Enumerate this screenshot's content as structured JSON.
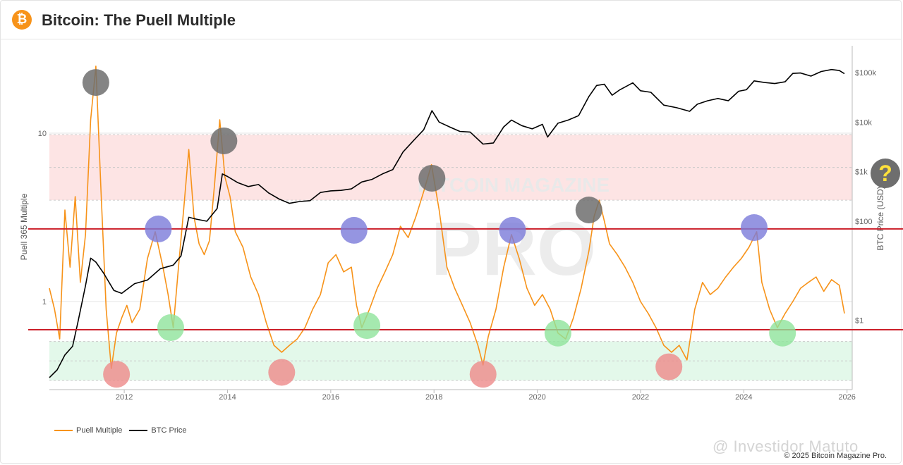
{
  "header": {
    "title": "Bitcoin: The Puell Multiple",
    "icon": "bitcoin-icon"
  },
  "colors": {
    "puell": "#f7931a",
    "btc": "#000000",
    "top_band": "#fde4e4",
    "bottom_band": "#e3f8ea",
    "red_line": "#cc1f2a",
    "circle_gray": "#6e6e6e",
    "circle_blue": "#7b7bd9",
    "circle_green": "#8fe39b",
    "circle_red": "#ee8a8a"
  },
  "legend": {
    "puell_label": "Puell Multiple",
    "btc_label": "BTC Price"
  },
  "footer": {
    "copyright": "© 2025 Bitcoin Magazine Pro.",
    "credit": "@ Investidor Matuto"
  },
  "overlay": {
    "question_mark": "?"
  },
  "chart_data": {
    "type": "line",
    "watermark": "BITCOIN MAGAZINE PRO",
    "x_axis": {
      "ticks": [
        "2012",
        "2014",
        "2016",
        "2018",
        "2020",
        "2022",
        "2024",
        "2026"
      ],
      "range": [
        2010.55,
        2026.1
      ]
    },
    "y_left": {
      "label": "Puell 365 Multiple",
      "scale": "log",
      "ticks": [
        {
          "value": 1,
          "label": "1"
        },
        {
          "value": 10,
          "label": "10"
        }
      ],
      "range": [
        0.3,
        30
      ]
    },
    "y_right": {
      "label": "BTC Price (USD)",
      "scale": "log",
      "ticks": [
        {
          "value": 1,
          "label": "$1"
        },
        {
          "value": 100,
          "label": "$100"
        },
        {
          "value": 1000,
          "label": "$1k"
        },
        {
          "value": 10000,
          "label": "$10k"
        },
        {
          "value": 100000,
          "label": "$100k"
        }
      ],
      "range": [
        0.04,
        250000
      ]
    },
    "bands": [
      {
        "name": "top",
        "from": 4.0,
        "to": 9.8
      },
      {
        "name": "bottom",
        "from": 0.34,
        "to": 0.58
      }
    ],
    "horizontal_lines": [
      2.7,
      0.68
    ],
    "series": [
      {
        "name": "Puell Multiple",
        "axis": "left",
        "x": [
          2010.55,
          2010.65,
          2010.75,
          2010.85,
          2010.95,
          2011.05,
          2011.15,
          2011.25,
          2011.35,
          2011.45,
          2011.55,
          2011.65,
          2011.75,
          2011.85,
          2011.95,
          2012.05,
          2012.15,
          2012.3,
          2012.45,
          2012.6,
          2012.75,
          2012.85,
          2012.95,
          2013.05,
          2013.15,
          2013.25,
          2013.35,
          2013.45,
          2013.55,
          2013.65,
          2013.75,
          2013.85,
          2013.95,
          2014.05,
          2014.15,
          2014.3,
          2014.45,
          2014.6,
          2014.75,
          2014.9,
          2015.05,
          2015.2,
          2015.35,
          2015.5,
          2015.65,
          2015.8,
          2015.95,
          2016.1,
          2016.25,
          2016.4,
          2016.5,
          2016.6,
          2016.75,
          2016.9,
          2017.05,
          2017.2,
          2017.35,
          2017.5,
          2017.65,
          2017.8,
          2017.95,
          2018.1,
          2018.25,
          2018.4,
          2018.55,
          2018.7,
          2018.85,
          2018.95,
          2019.05,
          2019.2,
          2019.35,
          2019.5,
          2019.65,
          2019.8,
          2019.95,
          2020.1,
          2020.25,
          2020.4,
          2020.55,
          2020.7,
          2020.85,
          2021.0,
          2021.1,
          2021.2,
          2021.3,
          2021.4,
          2021.55,
          2021.7,
          2021.85,
          2022.0,
          2022.15,
          2022.3,
          2022.45,
          2022.6,
          2022.75,
          2022.9,
          2023.05,
          2023.2,
          2023.35,
          2023.5,
          2023.65,
          2023.8,
          2023.95,
          2024.1,
          2024.25,
          2024.35,
          2024.5,
          2024.65,
          2024.8,
          2024.95,
          2025.1,
          2025.25,
          2025.4,
          2025.55,
          2025.7,
          2025.85,
          2025.95
        ],
        "y": [
          1.2,
          0.9,
          0.6,
          3.5,
          1.6,
          4.2,
          1.3,
          2.5,
          12,
          25,
          4.5,
          0.9,
          0.4,
          0.65,
          0.8,
          0.95,
          0.75,
          0.9,
          1.8,
          2.6,
          1.6,
          1.1,
          0.7,
          1.6,
          3.5,
          8,
          3.2,
          2.2,
          1.9,
          2.3,
          5.0,
          12.0,
          5.5,
          4.2,
          2.6,
          2.1,
          1.4,
          1.1,
          0.75,
          0.55,
          0.5,
          0.55,
          0.6,
          0.7,
          0.9,
          1.1,
          1.7,
          1.9,
          1.5,
          1.6,
          0.95,
          0.7,
          0.9,
          1.2,
          1.5,
          1.9,
          2.8,
          2.4,
          3.2,
          4.5,
          6.5,
          3.5,
          1.6,
          1.2,
          0.95,
          0.75,
          0.55,
          0.42,
          0.62,
          0.9,
          1.6,
          2.5,
          1.8,
          1.2,
          0.95,
          1.1,
          0.9,
          0.65,
          0.6,
          0.8,
          1.2,
          2.0,
          3.2,
          4.0,
          3.0,
          2.2,
          1.9,
          1.6,
          1.3,
          1.0,
          0.85,
          0.7,
          0.55,
          0.5,
          0.55,
          0.45,
          0.9,
          1.3,
          1.1,
          1.2,
          1.4,
          1.6,
          1.8,
          2.1,
          2.6,
          1.3,
          0.9,
          0.7,
          0.85,
          1.0,
          1.2,
          1.3,
          1.4,
          1.15,
          1.35,
          1.25,
          0.85
        ]
      },
      {
        "name": "BTC Price",
        "axis": "right",
        "x": [
          2010.55,
          2010.7,
          2010.85,
          2011.0,
          2011.1,
          2011.25,
          2011.35,
          2011.45,
          2011.6,
          2011.8,
          2011.95,
          2012.2,
          2012.45,
          2012.7,
          2012.95,
          2013.1,
          2013.25,
          2013.4,
          2013.6,
          2013.8,
          2013.9,
          2014.0,
          2014.2,
          2014.4,
          2014.6,
          2014.8,
          2015.0,
          2015.2,
          2015.4,
          2015.6,
          2015.8,
          2016.0,
          2016.2,
          2016.4,
          2016.6,
          2016.8,
          2017.0,
          2017.2,
          2017.4,
          2017.6,
          2017.8,
          2017.96,
          2018.1,
          2018.3,
          2018.5,
          2018.7,
          2018.95,
          2019.15,
          2019.35,
          2019.5,
          2019.7,
          2019.9,
          2020.1,
          2020.2,
          2020.4,
          2020.6,
          2020.8,
          2021.0,
          2021.15,
          2021.3,
          2021.45,
          2021.6,
          2021.85,
          2022.0,
          2022.2,
          2022.45,
          2022.7,
          2022.95,
          2023.1,
          2023.3,
          2023.5,
          2023.7,
          2023.9,
          2024.05,
          2024.2,
          2024.4,
          2024.6,
          2024.8,
          2024.95,
          2025.1,
          2025.3,
          2025.5,
          2025.7,
          2025.85,
          2025.95
        ],
        "y": [
          0.07,
          0.1,
          0.2,
          0.3,
          0.9,
          5,
          18,
          15,
          9,
          4,
          3.5,
          5.5,
          6.5,
          11,
          13,
          20,
          120,
          110,
          100,
          180,
          900,
          800,
          600,
          500,
          550,
          370,
          280,
          230,
          250,
          260,
          380,
          410,
          420,
          450,
          620,
          700,
          900,
          1100,
          2500,
          4200,
          7000,
          17000,
          10000,
          8000,
          6500,
          6300,
          3600,
          3800,
          8000,
          11000,
          8500,
          7300,
          9000,
          5000,
          9500,
          11000,
          13500,
          33000,
          55000,
          58000,
          35000,
          45000,
          62000,
          43000,
          40000,
          22000,
          19500,
          16500,
          23000,
          27000,
          30000,
          27000,
          42000,
          45000,
          68000,
          63000,
          60000,
          65000,
          96000,
          98000,
          85000,
          105000,
          115000,
          110000,
          95000
        ]
      }
    ],
    "annotation_circles": [
      {
        "color": "gray",
        "x": 2011.45,
        "axis": "left",
        "y": 20
      },
      {
        "color": "gray",
        "x": 2013.93,
        "axis": "left",
        "y": 9.0
      },
      {
        "color": "gray",
        "x": 2017.96,
        "axis": "left",
        "y": 5.4
      },
      {
        "color": "gray",
        "x": 2021.0,
        "axis": "left",
        "y": 3.5
      },
      {
        "color": "blue",
        "x": 2012.66,
        "axis": "left",
        "y": 2.7
      },
      {
        "color": "blue",
        "x": 2016.45,
        "axis": "left",
        "y": 2.65
      },
      {
        "color": "blue",
        "x": 2019.52,
        "axis": "left",
        "y": 2.65
      },
      {
        "color": "blue",
        "x": 2024.2,
        "axis": "left",
        "y": 2.75
      },
      {
        "color": "green",
        "x": 2012.9,
        "axis": "left",
        "y": 0.7
      },
      {
        "color": "green",
        "x": 2016.7,
        "axis": "left",
        "y": 0.72
      },
      {
        "color": "green",
        "x": 2020.4,
        "axis": "left",
        "y": 0.65
      },
      {
        "color": "green",
        "x": 2024.75,
        "axis": "left",
        "y": 0.65
      },
      {
        "color": "red",
        "x": 2011.85,
        "axis": "left",
        "y": 0.37
      },
      {
        "color": "red",
        "x": 2015.05,
        "axis": "left",
        "y": 0.38
      },
      {
        "color": "red",
        "x": 2018.95,
        "axis": "left",
        "y": 0.37
      },
      {
        "color": "red",
        "x": 2022.55,
        "axis": "left",
        "y": 0.41
      }
    ],
    "grid": true,
    "legend_position": "bottom-left"
  }
}
